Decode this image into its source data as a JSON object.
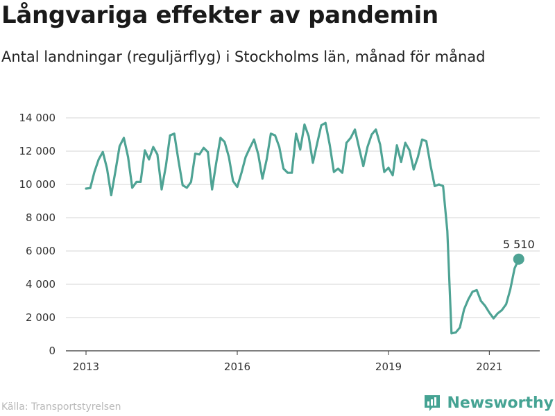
{
  "header": {
    "title": "Långvariga effekter av pandemin",
    "subtitle": "Antal landningar (reguljärflyg) i Stockholms län, månad för månad"
  },
  "footer": {
    "source": "Källa: Transportstyrelsen",
    "brand": "Newsworthy",
    "brand_icon": "bar-chart-logo-icon"
  },
  "colors": {
    "line": "#4ea394",
    "grid": "#d4d4d4",
    "axis": "#333333",
    "brand": "#45a393"
  },
  "chart_data": {
    "type": "line",
    "title": "Långvariga effekter av pandemin",
    "subtitle": "Antal landningar (reguljärflyg) i Stockholms län, månad för månad",
    "xlabel": "",
    "ylabel": "",
    "x_start": "2013-01",
    "x_ticks": [
      "2013",
      "2016",
      "2019",
      "2021"
    ],
    "y_ticks": [
      "0",
      "2 000",
      "4 000",
      "6 000",
      "8 000",
      "10 000",
      "12 000",
      "14 000"
    ],
    "ylim": [
      0,
      14000
    ],
    "grid": true,
    "series": [
      {
        "values": [
          9750,
          9780,
          10750,
          11500,
          11950,
          10950,
          9350,
          10800,
          12300,
          12800,
          11650,
          9800,
          10150,
          10150,
          12050,
          11500,
          12250,
          11800,
          9700,
          11100,
          12950,
          13050,
          11450,
          9950,
          9800,
          10150,
          11850,
          11800,
          12200,
          11950,
          9700,
          11300,
          12800,
          12550,
          11650,
          10200,
          9850,
          10700,
          11650,
          12200,
          12700,
          11800,
          10350,
          11500,
          13050,
          12950,
          12250,
          10950,
          10700,
          10700,
          13050,
          12100,
          13600,
          12900,
          11300,
          12450,
          13550,
          13700,
          12400,
          10750,
          10950,
          10700,
          12500,
          12800,
          13300,
          12200,
          11100,
          12250,
          13000,
          13300,
          12400,
          10750,
          11000,
          10550,
          12350,
          11350,
          12500,
          12050,
          10900,
          11650,
          12700,
          12600,
          11150,
          9900,
          10000,
          9900,
          7200,
          1050,
          1100,
          1400,
          2500,
          3100,
          3550,
          3650,
          3000,
          2700,
          2300,
          1950,
          2250,
          2450,
          2800,
          3700,
          4950,
          5510
        ],
        "last_label": "5 510"
      }
    ]
  }
}
